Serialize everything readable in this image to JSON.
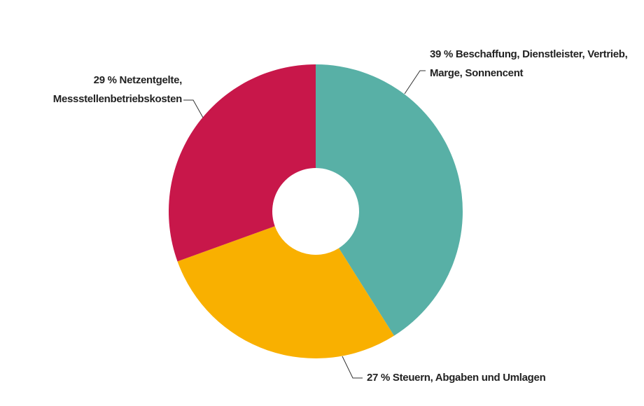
{
  "chart_data": {
    "type": "donut",
    "categories": [
      "Beschaffung, Dienstleister, Vertrieb, Marge, Sonnencent",
      "Steuern, Abgaben und Umlagen",
      "Netzentgelte, Messstellenbetriebskosten"
    ],
    "values": [
      39,
      27,
      29
    ],
    "value_labels": [
      "39 %",
      "27 %",
      "29 %"
    ],
    "colors": [
      "#58b0a6",
      "#f9b000",
      "#c8174a"
    ]
  }
}
